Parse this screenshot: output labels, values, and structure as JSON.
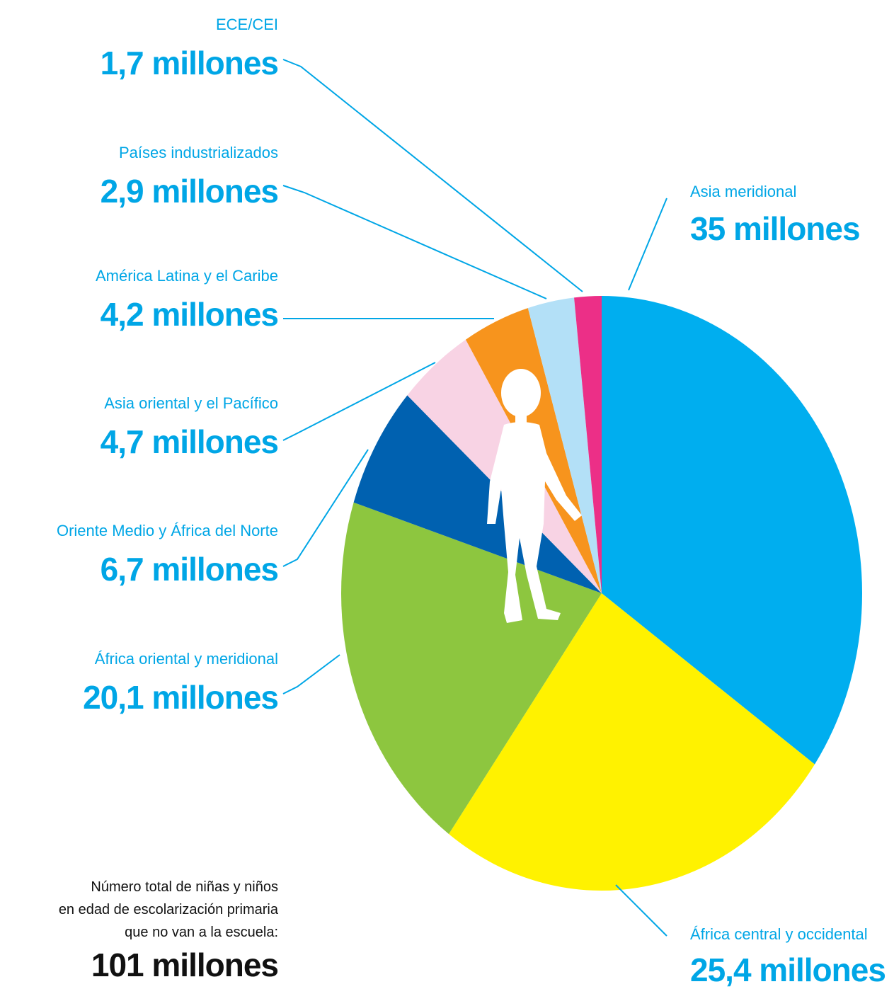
{
  "chart_data": {
    "type": "pie",
    "unit": "millones",
    "slices": [
      {
        "label": "Asia meridional",
        "value": 35,
        "value_text": "35 millones",
        "color": "#00aeef"
      },
      {
        "label": "África central y occidental",
        "value": 25.4,
        "value_text": "25,4 millones",
        "color": "#fff200"
      },
      {
        "label": "África oriental y meridional",
        "value": 20.1,
        "value_text": "20,1 millones",
        "color": "#8dc63f"
      },
      {
        "label": "Oriente Medio y África del Norte",
        "value": 6.7,
        "value_text": "6,7 millones",
        "color": "#0061b0"
      },
      {
        "label": "Asia oriental y el Pacífico",
        "value": 4.7,
        "value_text": "4,7 millones",
        "color": "#f8d3e4"
      },
      {
        "label": "América Latina y el Caribe",
        "value": 4.2,
        "value_text": "4,2 millones",
        "color": "#f7941d"
      },
      {
        "label": "Países industrializados",
        "value": 2.9,
        "value_text": "2,9 millones",
        "color": "#b3e0f7"
      },
      {
        "label": "ECE/CEI",
        "value": 1.7,
        "value_text": "1,7 millones",
        "color": "#ec2f87"
      }
    ],
    "total": {
      "lines": [
        "Número total de niñas y niños",
        "en edad de escolarización primaria",
        "que no van a la escuela:"
      ],
      "value_text": "101 millones"
    }
  }
}
